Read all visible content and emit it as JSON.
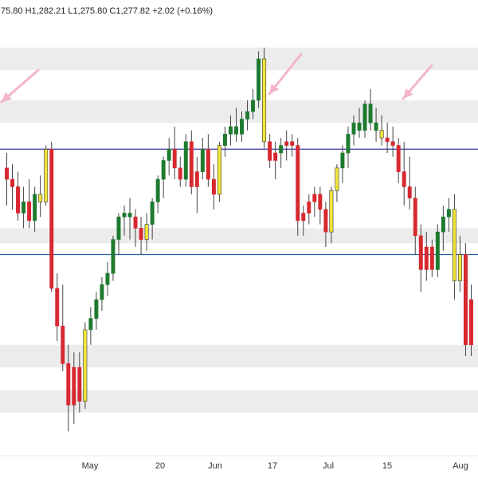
{
  "header": {
    "ohlc_text": "75.80  H1,282.21  L1,275.80  C1,277.82  +2.02  (+0.16%)"
  },
  "colors": {
    "up": "#1e7a2e",
    "down": "#d7282f",
    "neutral": "#f2e63a",
    "zone": "#ececec",
    "hline_upper": "#3a3aa8",
    "hline_lower": "#2a5fa8",
    "arrow": "#f2b6c8",
    "wick": "#444444"
  },
  "chart_data": {
    "type": "candlestick",
    "title": "",
    "xlabel": "",
    "ylabel": "",
    "x_ticks": [
      "May",
      "20",
      "Jun",
      "17",
      "Jul",
      "15",
      "Aug"
    ],
    "ylim": [
      1180,
      1295
    ],
    "grid": false,
    "horizontal_lines": [
      1260,
      1232
    ],
    "zones": [
      [
        1281,
        1287
      ],
      [
        1267,
        1273
      ],
      [
        1235,
        1239
      ],
      [
        1202,
        1208
      ],
      [
        1190,
        1196
      ]
    ],
    "arrows": [
      "left",
      "down-left",
      "down-left"
    ],
    "candles": [
      {
        "o": 1255,
        "h": 1259,
        "l": 1245,
        "c": 1252,
        "d": "down"
      },
      {
        "o": 1252,
        "h": 1256,
        "l": 1244,
        "c": 1250,
        "d": "down"
      },
      {
        "o": 1250,
        "h": 1254,
        "l": 1241,
        "c": 1243,
        "d": "down"
      },
      {
        "o": 1243,
        "h": 1250,
        "l": 1239,
        "c": 1246,
        "d": "up"
      },
      {
        "o": 1246,
        "h": 1252,
        "l": 1239,
        "c": 1241,
        "d": "down"
      },
      {
        "o": 1241,
        "h": 1250,
        "l": 1238,
        "c": 1248,
        "d": "up"
      },
      {
        "o": 1248,
        "h": 1253,
        "l": 1242,
        "c": 1246,
        "d": "neutral"
      },
      {
        "o": 1246,
        "h": 1261,
        "l": 1245,
        "c": 1260,
        "d": "neutral"
      },
      {
        "o": 1260,
        "h": 1262,
        "l": 1222,
        "c": 1223,
        "d": "down"
      },
      {
        "o": 1223,
        "h": 1227,
        "l": 1209,
        "c": 1213,
        "d": "down"
      },
      {
        "o": 1213,
        "h": 1224,
        "l": 1201,
        "c": 1203,
        "d": "down"
      },
      {
        "o": 1203,
        "h": 1208,
        "l": 1185,
        "c": 1192,
        "d": "down"
      },
      {
        "o": 1192,
        "h": 1206,
        "l": 1187,
        "c": 1202,
        "d": "down"
      },
      {
        "o": 1202,
        "h": 1206,
        "l": 1190,
        "c": 1193,
        "d": "down"
      },
      {
        "o": 1193,
        "h": 1214,
        "l": 1191,
        "c": 1212,
        "d": "neutral"
      },
      {
        "o": 1212,
        "h": 1218,
        "l": 1208,
        "c": 1215,
        "d": "up"
      },
      {
        "o": 1215,
        "h": 1222,
        "l": 1212,
        "c": 1220,
        "d": "up"
      },
      {
        "o": 1220,
        "h": 1226,
        "l": 1217,
        "c": 1224,
        "d": "up"
      },
      {
        "o": 1224,
        "h": 1230,
        "l": 1221,
        "c": 1227,
        "d": "up"
      },
      {
        "o": 1227,
        "h": 1237,
        "l": 1225,
        "c": 1236,
        "d": "up"
      },
      {
        "o": 1236,
        "h": 1243,
        "l": 1232,
        "c": 1242,
        "d": "up"
      },
      {
        "o": 1242,
        "h": 1245,
        "l": 1237,
        "c": 1243,
        "d": "up"
      },
      {
        "o": 1243,
        "h": 1247,
        "l": 1236,
        "c": 1242,
        "d": "up"
      },
      {
        "o": 1242,
        "h": 1244,
        "l": 1234,
        "c": 1239,
        "d": "down"
      },
      {
        "o": 1239,
        "h": 1242,
        "l": 1232,
        "c": 1236,
        "d": "down"
      },
      {
        "o": 1236,
        "h": 1243,
        "l": 1233,
        "c": 1240,
        "d": "neutral"
      },
      {
        "o": 1240,
        "h": 1247,
        "l": 1236,
        "c": 1246,
        "d": "up"
      },
      {
        "o": 1246,
        "h": 1253,
        "l": 1243,
        "c": 1252,
        "d": "up"
      },
      {
        "o": 1252,
        "h": 1258,
        "l": 1247,
        "c": 1257,
        "d": "up"
      },
      {
        "o": 1257,
        "h": 1263,
        "l": 1253,
        "c": 1260,
        "d": "up"
      },
      {
        "o": 1260,
        "h": 1266,
        "l": 1252,
        "c": 1255,
        "d": "down"
      },
      {
        "o": 1255,
        "h": 1258,
        "l": 1250,
        "c": 1252,
        "d": "down"
      },
      {
        "o": 1252,
        "h": 1264,
        "l": 1250,
        "c": 1262,
        "d": "up"
      },
      {
        "o": 1262,
        "h": 1265,
        "l": 1248,
        "c": 1250,
        "d": "down"
      },
      {
        "o": 1250,
        "h": 1258,
        "l": 1243,
        "c": 1254,
        "d": "down"
      },
      {
        "o": 1254,
        "h": 1263,
        "l": 1252,
        "c": 1260,
        "d": "up"
      },
      {
        "o": 1260,
        "h": 1264,
        "l": 1250,
        "c": 1252,
        "d": "down"
      },
      {
        "o": 1252,
        "h": 1256,
        "l": 1244,
        "c": 1248,
        "d": "down"
      },
      {
        "o": 1248,
        "h": 1262,
        "l": 1246,
        "c": 1261,
        "d": "neutral"
      },
      {
        "o": 1261,
        "h": 1266,
        "l": 1258,
        "c": 1264,
        "d": "up"
      },
      {
        "o": 1264,
        "h": 1269,
        "l": 1261,
        "c": 1266,
        "d": "up"
      },
      {
        "o": 1266,
        "h": 1271,
        "l": 1262,
        "c": 1264,
        "d": "up"
      },
      {
        "o": 1264,
        "h": 1270,
        "l": 1262,
        "c": 1268,
        "d": "up"
      },
      {
        "o": 1268,
        "h": 1273,
        "l": 1265,
        "c": 1270,
        "d": "up"
      },
      {
        "o": 1270,
        "h": 1276,
        "l": 1268,
        "c": 1273,
        "d": "up"
      },
      {
        "o": 1273,
        "h": 1286,
        "l": 1271,
        "c": 1284,
        "d": "up"
      },
      {
        "o": 1284,
        "h": 1287,
        "l": 1260,
        "c": 1262,
        "d": "neutral"
      },
      {
        "o": 1262,
        "h": 1264,
        "l": 1255,
        "c": 1257,
        "d": "down"
      },
      {
        "o": 1257,
        "h": 1262,
        "l": 1252,
        "c": 1259,
        "d": "down"
      },
      {
        "o": 1259,
        "h": 1263,
        "l": 1255,
        "c": 1261,
        "d": "up"
      },
      {
        "o": 1261,
        "h": 1265,
        "l": 1257,
        "c": 1262,
        "d": "down"
      },
      {
        "o": 1262,
        "h": 1264,
        "l": 1258,
        "c": 1261,
        "d": "down"
      },
      {
        "o": 1261,
        "h": 1263,
        "l": 1237,
        "c": 1241,
        "d": "down"
      },
      {
        "o": 1241,
        "h": 1245,
        "l": 1237,
        "c": 1243,
        "d": "down"
      },
      {
        "o": 1243,
        "h": 1248,
        "l": 1240,
        "c": 1246,
        "d": "down"
      },
      {
        "o": 1246,
        "h": 1250,
        "l": 1242,
        "c": 1248,
        "d": "down"
      },
      {
        "o": 1248,
        "h": 1250,
        "l": 1240,
        "c": 1244,
        "d": "down"
      },
      {
        "o": 1244,
        "h": 1246,
        "l": 1234,
        "c": 1238,
        "d": "down"
      },
      {
        "o": 1238,
        "h": 1250,
        "l": 1235,
        "c": 1249,
        "d": "neutral"
      },
      {
        "o": 1249,
        "h": 1256,
        "l": 1246,
        "c": 1255,
        "d": "neutral"
      },
      {
        "o": 1255,
        "h": 1261,
        "l": 1251,
        "c": 1259,
        "d": "up"
      },
      {
        "o": 1259,
        "h": 1266,
        "l": 1255,
        "c": 1264,
        "d": "up"
      },
      {
        "o": 1264,
        "h": 1269,
        "l": 1261,
        "c": 1267,
        "d": "up"
      },
      {
        "o": 1267,
        "h": 1271,
        "l": 1263,
        "c": 1265,
        "d": "up"
      },
      {
        "o": 1265,
        "h": 1273,
        "l": 1263,
        "c": 1272,
        "d": "up"
      },
      {
        "o": 1272,
        "h": 1276,
        "l": 1265,
        "c": 1267,
        "d": "up"
      },
      {
        "o": 1267,
        "h": 1271,
        "l": 1262,
        "c": 1265,
        "d": "up"
      },
      {
        "o": 1265,
        "h": 1269,
        "l": 1261,
        "c": 1263,
        "d": "neutral"
      },
      {
        "o": 1263,
        "h": 1267,
        "l": 1259,
        "c": 1262,
        "d": "down"
      },
      {
        "o": 1262,
        "h": 1266,
        "l": 1258,
        "c": 1261,
        "d": "down"
      },
      {
        "o": 1261,
        "h": 1263,
        "l": 1251,
        "c": 1254,
        "d": "down"
      },
      {
        "o": 1254,
        "h": 1262,
        "l": 1245,
        "c": 1250,
        "d": "down"
      },
      {
        "o": 1250,
        "h": 1258,
        "l": 1244,
        "c": 1247,
        "d": "down"
      },
      {
        "o": 1247,
        "h": 1250,
        "l": 1232,
        "c": 1237,
        "d": "down"
      },
      {
        "o": 1237,
        "h": 1240,
        "l": 1222,
        "c": 1228,
        "d": "down"
      },
      {
        "o": 1228,
        "h": 1238,
        "l": 1225,
        "c": 1234,
        "d": "down"
      },
      {
        "o": 1234,
        "h": 1236,
        "l": 1226,
        "c": 1228,
        "d": "down"
      },
      {
        "o": 1228,
        "h": 1240,
        "l": 1226,
        "c": 1238,
        "d": "up"
      },
      {
        "o": 1238,
        "h": 1245,
        "l": 1233,
        "c": 1242,
        "d": "up"
      },
      {
        "o": 1242,
        "h": 1247,
        "l": 1238,
        "c": 1244,
        "d": "up"
      },
      {
        "o": 1244,
        "h": 1248,
        "l": 1220,
        "c": 1225,
        "d": "neutral"
      },
      {
        "o": 1225,
        "h": 1237,
        "l": 1222,
        "c": 1232,
        "d": "neutral"
      },
      {
        "o": 1232,
        "h": 1235,
        "l": 1205,
        "c": 1208,
        "d": "down"
      },
      {
        "o": 1208,
        "h": 1224,
        "l": 1205,
        "c": 1220,
        "d": "down"
      }
    ]
  }
}
